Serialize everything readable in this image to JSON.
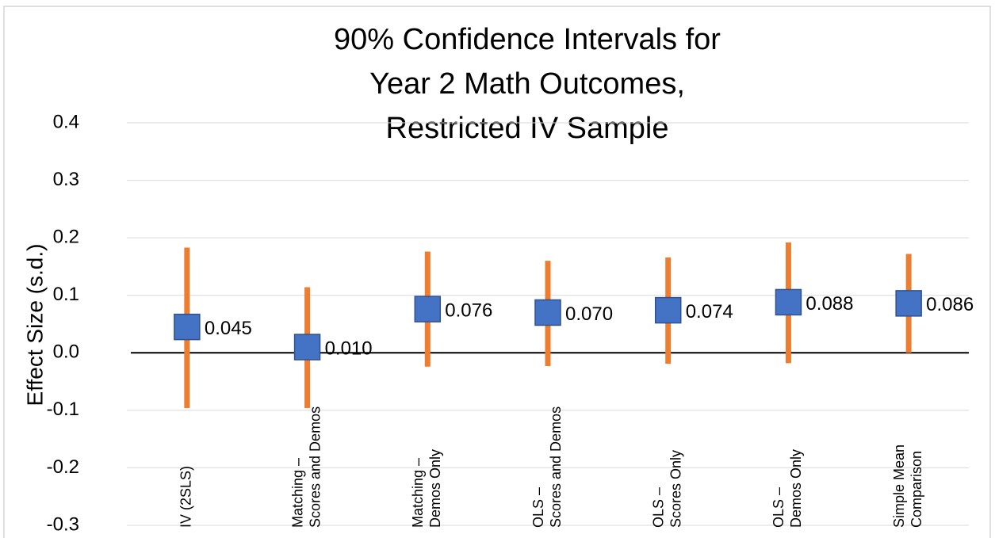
{
  "chart_data": {
    "type": "interval",
    "title": [
      "90% Confidence Intervals for",
      "Year 2 Math Outcomes,",
      "Restricted IV Sample"
    ],
    "y_label": "Effect Size (s.d.)",
    "categories": [
      [
        "IV (2SLS)"
      ],
      [
        "Matching –",
        "Scores and Demos"
      ],
      [
        "Matching –",
        "Demos Only"
      ],
      [
        "OLS –",
        "Scores and Demos"
      ],
      [
        "OLS –",
        "Scores Only"
      ],
      [
        "OLS –",
        "Demos Only"
      ],
      [
        "Simple Mean",
        "Comparison"
      ]
    ],
    "values": [
      0.045,
      0.01,
      0.076,
      0.07,
      0.074,
      0.088,
      0.086
    ],
    "value_labels": [
      "0.045",
      "0.010",
      "0.076",
      "0.070",
      "0.074",
      "0.088",
      "0.086"
    ],
    "lower": [
      -0.096,
      -0.096,
      -0.024,
      -0.023,
      -0.019,
      -0.018,
      0.0
    ],
    "upper": [
      0.183,
      0.114,
      0.176,
      0.16,
      0.166,
      0.192,
      0.172
    ],
    "marker_color": "#4472c4",
    "interval_color": "#ed7d31",
    "ylim": [
      -0.3,
      0.4
    ],
    "yticks": [
      -0.3,
      -0.2,
      -0.1,
      {
        "value": 0,
        "label": "0.0"
      },
      0.1,
      0.2,
      0.3,
      0.4
    ],
    "grid": true
  }
}
